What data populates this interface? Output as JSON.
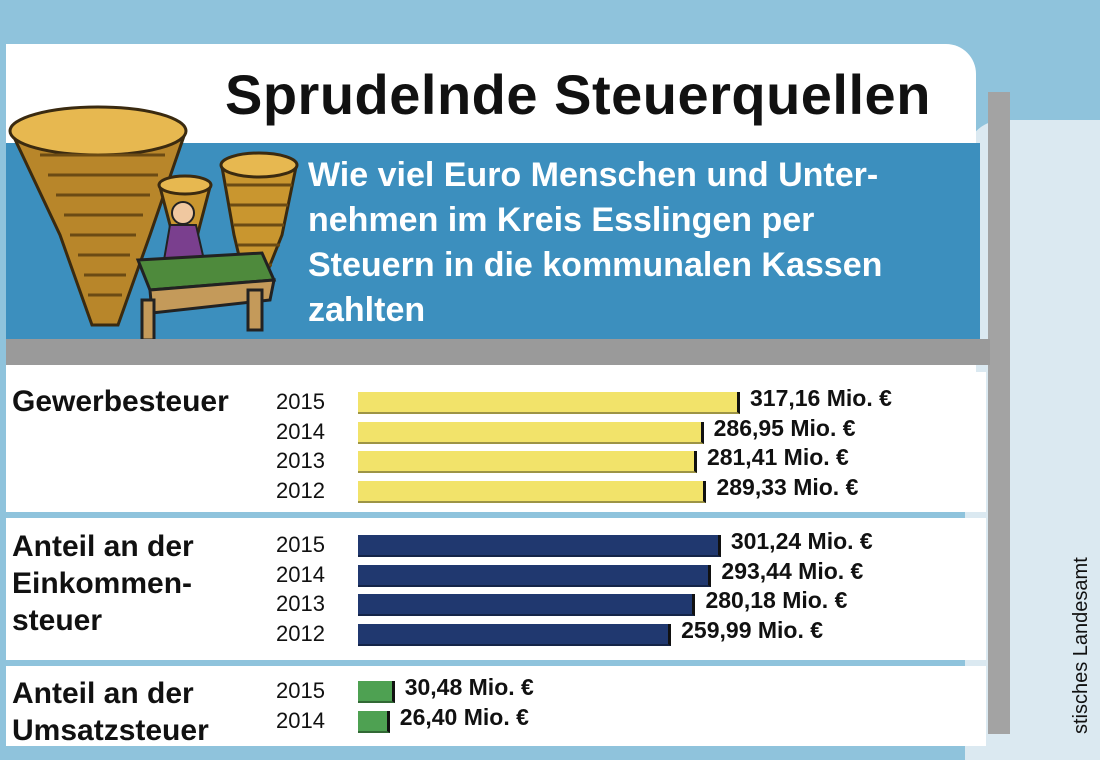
{
  "header": {
    "title": "Sprudelnde Steuerquellen",
    "subtitle": "Wie viel Euro Menschen und Unter-\nnehmen im Kreis Esslingen per\nSteuern in die kommunalen Kassen\nzahlten"
  },
  "illustration": {
    "icon": "coin-stacks-desk-illustration"
  },
  "source_label": "stisches Landesamt",
  "colors": {
    "gewerbe": "#f2e36a",
    "einkommen": "#20386f",
    "umsatz": "#4ea152",
    "accent": "#3c8fbe"
  },
  "chart_data": {
    "type": "bar",
    "orientation": "horizontal",
    "unit": "Mio. €",
    "sections": [
      {
        "label": "Gewerbesteuer",
        "color": "#f2e36a",
        "years": [
          "2015",
          "2014",
          "2013",
          "2012"
        ],
        "values": [
          317.16,
          286.95,
          281.41,
          289.33
        ],
        "value_labels": [
          "317,16 Mio. €",
          "286,95 Mio. €",
          "281,41 Mio. €",
          "289,33 Mio. €"
        ]
      },
      {
        "label": "Anteil an der\nEinkommen-\nsteuer",
        "color": "#20386f",
        "years": [
          "2015",
          "2014",
          "2013",
          "2012"
        ],
        "values": [
          301.24,
          293.44,
          280.18,
          259.99
        ],
        "value_labels": [
          "301,24 Mio. €",
          "293,44 Mio. €",
          "280,18 Mio. €",
          "259,99 Mio. €"
        ]
      },
      {
        "label": "Anteil an der\nUmsatzsteuer",
        "color": "#4ea152",
        "years": [
          "2015",
          "2014"
        ],
        "values": [
          30.48,
          26.4
        ],
        "value_labels": [
          "30,48 Mio. €",
          "26,40 Mio. €"
        ]
      }
    ]
  }
}
